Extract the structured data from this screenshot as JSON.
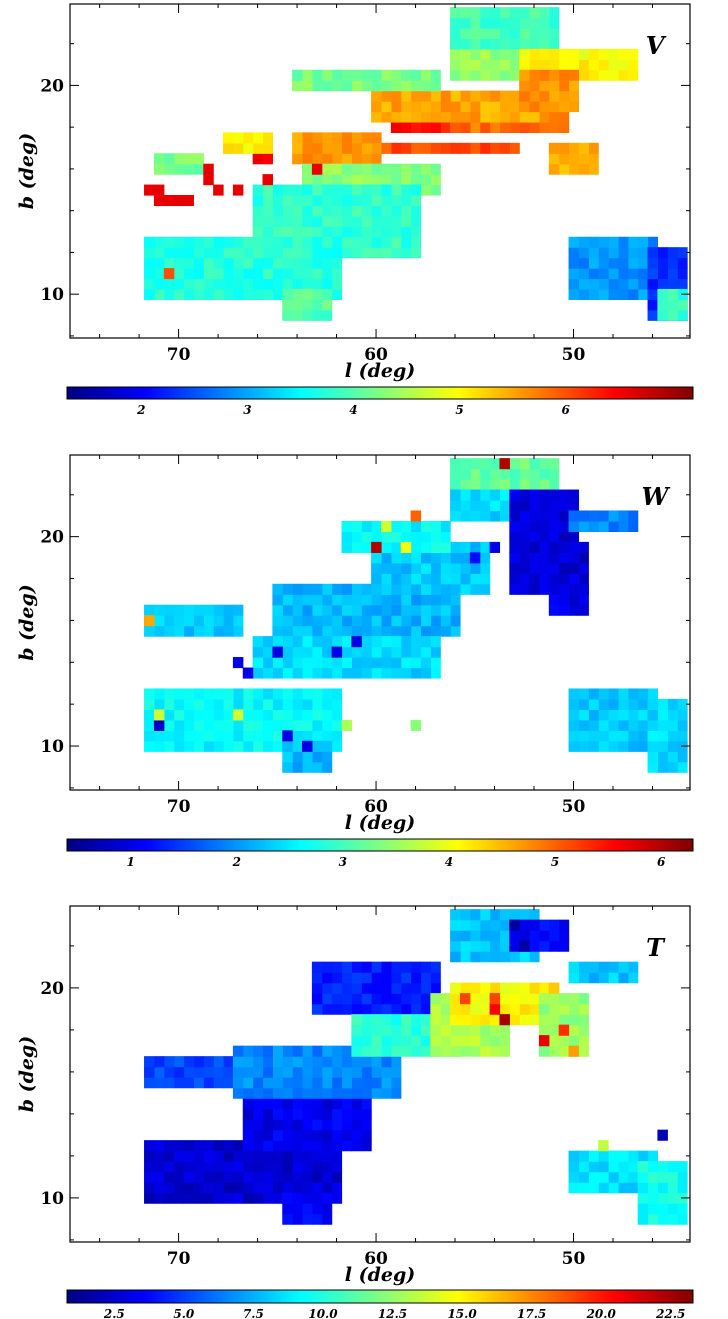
{
  "chart_data": [
    {
      "type": "heatmap",
      "panel_label": "V",
      "xlabel": "l (deg)",
      "ylabel": "b (deg)",
      "xlim": [
        75.5,
        44.1
      ],
      "ylim": [
        7.9,
        23.9
      ],
      "x_ticks": [
        70,
        60,
        50
      ],
      "y_ticks": [
        10,
        20
      ],
      "x_tick_labels": [
        "70",
        "60",
        "50"
      ],
      "y_tick_labels": [
        "10",
        "20"
      ],
      "colorbar": {
        "range": [
          1.3,
          7.2
        ],
        "ticks": [
          2,
          3,
          4,
          5,
          6
        ],
        "tick_labels": [
          "2",
          "3",
          "4",
          "5",
          "6"
        ]
      },
      "cell_size_deg": [
        0.5,
        0.5
      ],
      "regions": [
        {
          "l": [
            65.5,
            66.0
          ],
          "b": [
            16.5,
            16.5
          ],
          "v": 6.6
        },
        {
          "l": [
            63.0,
            53.0
          ],
          "b": [
            17.0,
            17.0
          ],
          "v": 6.0
        },
        {
          "l": [
            59.0,
            51.5
          ],
          "b": [
            18.0,
            18.5
          ],
          "v": 6.4
        },
        {
          "l": [
            56.0,
            50.5
          ],
          "b": [
            18.0,
            19.0
          ],
          "v": 5.8
        },
        {
          "l": [
            64.0,
            60.0
          ],
          "b": [
            16.5,
            17.5
          ],
          "v": 5.6
        },
        {
          "l": [
            60.0,
            52.0
          ],
          "b": [
            18.5,
            19.5
          ],
          "v": 5.5
        },
        {
          "l": [
            67.5,
            65.5
          ],
          "b": [
            17.0,
            17.5
          ],
          "v": 5.1
        },
        {
          "l": [
            63.5,
            57.0
          ],
          "b": [
            15.0,
            16.0
          ],
          "v": 4.3
        },
        {
          "l": [
            71.0,
            69.0
          ],
          "b": [
            16.0,
            16.5
          ],
          "v": 4.2
        },
        {
          "l": [
            66.0,
            58.0
          ],
          "b": [
            12.0,
            15.0
          ],
          "v": 3.8
        },
        {
          "l": [
            71.5,
            62.0
          ],
          "b": [
            10.0,
            12.5
          ],
          "v": 3.7
        },
        {
          "l": [
            64.5,
            62.5
          ],
          "b": [
            9.0,
            10.0
          ],
          "v": 4.0
        },
        {
          "l": [
            64.0,
            57.0
          ],
          "b": [
            20.0,
            20.5
          ],
          "v": 4.2
        },
        {
          "l": [
            56.0,
            53.0
          ],
          "b": [
            20.5,
            22.0
          ],
          "v": 4.4
        },
        {
          "l": [
            56.0,
            51.0
          ],
          "b": [
            22.0,
            23.5
          ],
          "v": 3.9
        },
        {
          "l": [
            52.5,
            47.0
          ],
          "b": [
            20.5,
            21.5
          ],
          "v": 5.0
        },
        {
          "l": [
            52.5,
            50.0
          ],
          "b": [
            19.0,
            20.5
          ],
          "v": 5.6
        },
        {
          "l": [
            51.0,
            49.0
          ],
          "b": [
            16.0,
            17.0
          ],
          "v": 5.5
        },
        {
          "l": [
            50.0,
            46.0
          ],
          "b": [
            10.0,
            12.5
          ],
          "v": 2.9
        },
        {
          "l": [
            46.0,
            44.5
          ],
          "b": [
            9.0,
            12.0
          ],
          "v": 2.3
        },
        {
          "l": [
            45.5,
            44.5
          ],
          "b": [
            9.0,
            10.0
          ],
          "v": 3.8
        }
      ],
      "cells": [
        {
          "l": 71.0,
          "b": 14.5,
          "v": 6.6
        },
        {
          "l": 70.5,
          "b": 14.5,
          "v": 6.6
        },
        {
          "l": 70.0,
          "b": 14.5,
          "v": 6.6
        },
        {
          "l": 69.5,
          "b": 14.5,
          "v": 6.6
        },
        {
          "l": 71.5,
          "b": 15.0,
          "v": 6.6
        },
        {
          "l": 71.0,
          "b": 15.0,
          "v": 6.6
        },
        {
          "l": 68.5,
          "b": 15.5,
          "v": 6.6
        },
        {
          "l": 68.0,
          "b": 15.0,
          "v": 6.6
        },
        {
          "l": 67.0,
          "b": 15.0,
          "v": 6.6
        },
        {
          "l": 68.5,
          "b": 16.0,
          "v": 6.6
        },
        {
          "l": 65.5,
          "b": 15.5,
          "v": 6.6
        },
        {
          "l": 63.0,
          "b": 16.0,
          "v": 6.6
        },
        {
          "l": 70.5,
          "b": 11.0,
          "v": 6.0
        }
      ]
    },
    {
      "type": "heatmap",
      "panel_label": "W",
      "xlabel": "l (deg)",
      "ylabel": "b (deg)",
      "xlim": [
        75.5,
        44.1
      ],
      "ylim": [
        7.9,
        23.9
      ],
      "x_ticks": [
        70,
        60,
        50
      ],
      "y_ticks": [
        10,
        20
      ],
      "x_tick_labels": [
        "70",
        "60",
        "50"
      ],
      "y_tick_labels": [
        "10",
        "20"
      ],
      "colorbar": {
        "range": [
          0.4,
          6.3
        ],
        "ticks": [
          1,
          2,
          3,
          4,
          5,
          6
        ],
        "tick_labels": [
          "1",
          "2",
          "3",
          "4",
          "5",
          "6"
        ]
      },
      "cell_size_deg": [
        0.5,
        0.5
      ],
      "regions": [
        {
          "l": [
            65.0,
            56.0
          ],
          "b": [
            15.5,
            17.5
          ],
          "v": 2.2
        },
        {
          "l": [
            60.0,
            54.5
          ],
          "b": [
            17.5,
            19.5
          ],
          "v": 2.3
        },
        {
          "l": [
            71.5,
            67.0
          ],
          "b": [
            15.5,
            16.5
          ],
          "v": 2.3
        },
        {
          "l": [
            66.0,
            57.0
          ],
          "b": [
            13.5,
            15.0
          ],
          "v": 2.4
        },
        {
          "l": [
            71.5,
            62.0
          ],
          "b": [
            10.0,
            12.5
          ],
          "v": 2.6
        },
        {
          "l": [
            64.5,
            62.5
          ],
          "b": [
            9.0,
            10.0
          ],
          "v": 2.2
        },
        {
          "l": [
            61.5,
            56.5
          ],
          "b": [
            19.5,
            20.5
          ],
          "v": 2.6
        },
        {
          "l": [
            56.0,
            51.0
          ],
          "b": [
            22.0,
            23.5
          ],
          "v": 3.2
        },
        {
          "l": [
            56.0,
            53.0
          ],
          "b": [
            21.0,
            22.0
          ],
          "v": 2.4
        },
        {
          "l": [
            53.0,
            50.0
          ],
          "b": [
            20.0,
            22.0
          ],
          "v": 0.9
        },
        {
          "l": [
            53.0,
            49.5
          ],
          "b": [
            17.5,
            19.5
          ],
          "v": 0.9
        },
        {
          "l": [
            51.0,
            49.5
          ],
          "b": [
            16.5,
            17.5
          ],
          "v": 1.0
        },
        {
          "l": [
            50.0,
            47.0
          ],
          "b": [
            20.5,
            21.0
          ],
          "v": 1.9
        },
        {
          "l": [
            50.0,
            46.0
          ],
          "b": [
            10.0,
            12.5
          ],
          "v": 2.3
        },
        {
          "l": [
            46.0,
            44.5
          ],
          "b": [
            9.0,
            12.0
          ],
          "v": 2.4
        }
      ],
      "cells": [
        {
          "l": 60.0,
          "b": 19.5,
          "v": 6.0
        },
        {
          "l": 53.5,
          "b": 23.5,
          "v": 6.0
        },
        {
          "l": 58.0,
          "b": 21.0,
          "v": 5.0
        },
        {
          "l": 59.5,
          "b": 20.5,
          "v": 3.8
        },
        {
          "l": 58.5,
          "b": 19.5,
          "v": 4.0
        },
        {
          "l": 71.0,
          "b": 11.0,
          "v": 0.8
        },
        {
          "l": 67.0,
          "b": 14.0,
          "v": 1.0
        },
        {
          "l": 66.5,
          "b": 13.5,
          "v": 1.0
        },
        {
          "l": 65.0,
          "b": 14.5,
          "v": 1.0
        },
        {
          "l": 62.0,
          "b": 14.5,
          "v": 1.0
        },
        {
          "l": 64.5,
          "b": 10.5,
          "v": 1.0
        },
        {
          "l": 63.5,
          "b": 10.0,
          "v": 1.0
        },
        {
          "l": 61.0,
          "b": 15.0,
          "v": 1.0
        },
        {
          "l": 54.0,
          "b": 19.5,
          "v": 1.0
        },
        {
          "l": 55.0,
          "b": 19.0,
          "v": 1.2
        },
        {
          "l": 52.5,
          "b": 20.5,
          "v": 1.0
        },
        {
          "l": 52.0,
          "b": 21.0,
          "v": 1.0
        },
        {
          "l": 71.0,
          "b": 11.5,
          "v": 3.8
        },
        {
          "l": 67.0,
          "b": 11.5,
          "v": 3.8
        },
        {
          "l": 61.5,
          "b": 11.0,
          "v": 3.6
        },
        {
          "l": 58.0,
          "b": 11.0,
          "v": 3.4
        },
        {
          "l": 71.5,
          "b": 16.0,
          "v": 4.6
        }
      ]
    },
    {
      "type": "heatmap",
      "panel_label": "T",
      "xlabel": "l (deg)",
      "ylabel": "b (deg)",
      "xlim": [
        75.5,
        44.1
      ],
      "ylim": [
        7.9,
        23.9
      ],
      "x_ticks": [
        70,
        60,
        50
      ],
      "y_ticks": [
        10,
        20
      ],
      "x_tick_labels": [
        "70",
        "60",
        "50"
      ],
      "y_tick_labels": [
        "10",
        "20"
      ],
      "colorbar": {
        "range": [
          0.8,
          23.3
        ],
        "ticks": [
          2.5,
          5.0,
          7.5,
          10.0,
          12.5,
          15.0,
          17.5,
          20.0,
          22.5
        ],
        "tick_labels": [
          "2.5",
          "5.0",
          "7.5",
          "10.0",
          "12.5",
          "15.0",
          "17.5",
          "20.0",
          "22.5"
        ]
      },
      "cell_size_deg": [
        0.5,
        0.5
      ],
      "regions": [
        {
          "l": [
            71.5,
            62.0
          ],
          "b": [
            10.0,
            12.5
          ],
          "v": 2.6
        },
        {
          "l": [
            66.5,
            60.5
          ],
          "b": [
            12.5,
            15.0
          ],
          "v": 3.2
        },
        {
          "l": [
            64.5,
            62.5
          ],
          "b": [
            9.0,
            10.0
          ],
          "v": 3.6
        },
        {
          "l": [
            71.5,
            67.0
          ],
          "b": [
            15.5,
            16.5
          ],
          "v": 5.0
        },
        {
          "l": [
            67.0,
            59.0
          ],
          "b": [
            15.0,
            17.0
          ],
          "v": 6.6
        },
        {
          "l": [
            63.0,
            57.0
          ],
          "b": [
            19.0,
            21.0
          ],
          "v": 4.2
        },
        {
          "l": [
            61.0,
            56.0
          ],
          "b": [
            17.0,
            18.5
          ],
          "v": 10.0
        },
        {
          "l": [
            57.0,
            53.5
          ],
          "b": [
            17.0,
            19.5
          ],
          "v": 13.0
        },
        {
          "l": [
            56.0,
            51.0
          ],
          "b": [
            18.5,
            20.0
          ],
          "v": 15.0
        },
        {
          "l": [
            56.0,
            52.0
          ],
          "b": [
            21.5,
            23.5
          ],
          "v": 8.0
        },
        {
          "l": [
            53.0,
            50.5
          ],
          "b": [
            22.0,
            23.0
          ],
          "v": 3.6
        },
        {
          "l": [
            51.5,
            49.5
          ],
          "b": [
            17.0,
            19.5
          ],
          "v": 12.6
        },
        {
          "l": [
            50.0,
            47.0
          ],
          "b": [
            20.5,
            21.0
          ],
          "v": 8.0
        },
        {
          "l": [
            50.0,
            46.0
          ],
          "b": [
            10.5,
            12.0
          ],
          "v": 8.6
        },
        {
          "l": [
            46.5,
            44.5
          ],
          "b": [
            9.0,
            11.5
          ],
          "v": 9.6
        }
      ],
      "cells": [
        {
          "l": 53.5,
          "b": 18.5,
          "v": 22.5
        },
        {
          "l": 54.0,
          "b": 19.0,
          "v": 20.5
        },
        {
          "l": 55.5,
          "b": 19.5,
          "v": 19.0
        },
        {
          "l": 54.0,
          "b": 19.5,
          "v": 19.0
        },
        {
          "l": 51.5,
          "b": 17.5,
          "v": 21.0
        },
        {
          "l": 50.5,
          "b": 18.0,
          "v": 19.5
        },
        {
          "l": 50.0,
          "b": 17.0,
          "v": 17.0
        },
        {
          "l": 51.0,
          "b": 20.0,
          "v": 16.0
        },
        {
          "l": 53.0,
          "b": 23.0,
          "v": 1.6
        },
        {
          "l": 52.5,
          "b": 22.0,
          "v": 1.6
        },
        {
          "l": 45.5,
          "b": 13.0,
          "v": 2.0
        },
        {
          "l": 48.5,
          "b": 12.5,
          "v": 13.5
        }
      ]
    }
  ]
}
